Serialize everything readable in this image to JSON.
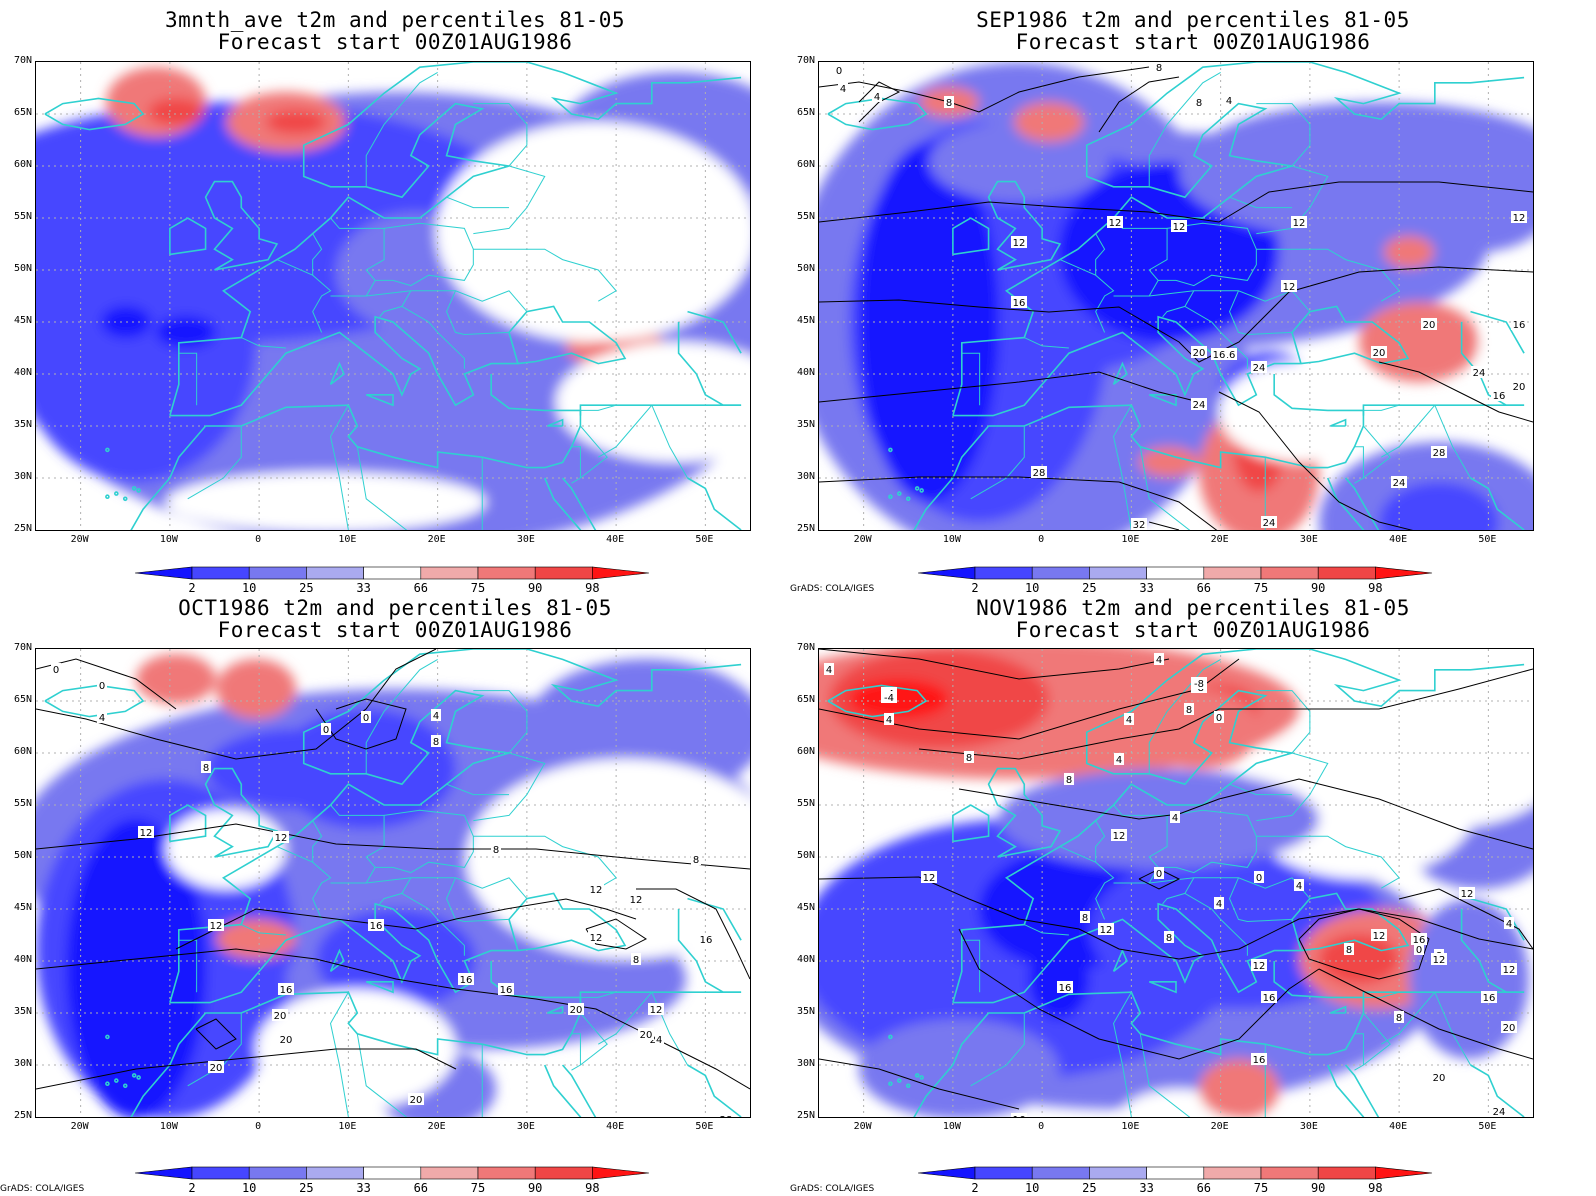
{
  "panels": [
    {
      "title1": "3mnth_ave t2m and percentiles 81-05",
      "title2": "Forecast start 00Z01AUG1986",
      "credit": ""
    },
    {
      "title1": "SEP1986 t2m and percentiles 81-05",
      "title2": "Forecast start 00Z01AUG1986",
      "credit": "GrADS: COLA/IGES"
    },
    {
      "title1": "OCT1986 t2m and percentiles 81-05",
      "title2": "Forecast start 00Z01AUG1986",
      "credit": "GrADS: COLA/IGES"
    },
    {
      "title1": "NOV1986 t2m and percentiles 81-05",
      "title2": "Forecast start 00Z01AUG1986",
      "credit": "GrADS: COLA/IGES"
    }
  ],
  "lat_labels": [
    "70N",
    "65N",
    "60N",
    "55N",
    "50N",
    "45N",
    "40N",
    "35N",
    "30N",
    "25N"
  ],
  "lon_labels": [
    "20W",
    "10W",
    "0",
    "10E",
    "20E",
    "30E",
    "40E",
    "50E"
  ],
  "colorbar": {
    "labels": [
      "2",
      "10",
      "25",
      "33",
      "66",
      "75",
      "90",
      "98"
    ],
    "colors": [
      "#1414ff",
      "#4646ff",
      "#7878f0",
      "#aaaaf0",
      "#ffffff",
      "#f0aaaa",
      "#f07878",
      "#f04646",
      "#ff1414"
    ]
  },
  "contour_labels": {
    "p1": [],
    "p2": [
      "0",
      "4",
      "4",
      "8",
      "8",
      "8",
      "4",
      "12",
      "12",
      "12",
      "12",
      "16",
      "16",
      "16",
      "20",
      "20",
      "20",
      "24",
      "24",
      "28",
      "28",
      "24",
      "24",
      "32",
      "16",
      "16",
      "12",
      "12",
      "20",
      "24"
    ],
    "p3": [
      "0",
      "0",
      "4",
      "8",
      "8",
      "0",
      "0",
      "4",
      "8",
      "8",
      "12",
      "12",
      "12",
      "16",
      "16",
      "20",
      "20",
      "16",
      "20",
      "20",
      "24",
      "28",
      "20",
      "8",
      "16",
      "12",
      "12",
      "16",
      "20",
      "24",
      "12",
      "12"
    ],
    "p4": [
      "4",
      "-4",
      "-8",
      "4",
      "8",
      "0",
      "4",
      "8",
      "4",
      "12",
      "4",
      "0",
      "0",
      "4",
      "8",
      "8",
      "12",
      "16",
      "12",
      "16",
      "12",
      "4",
      "8",
      "12",
      "0",
      "8",
      "12",
      "16",
      "20",
      "16",
      "20",
      "24",
      "-8",
      "-4",
      "4",
      "8",
      "4",
      "12",
      "16",
      "8",
      "12",
      "16"
    ]
  },
  "colors": {
    "coast": "#2fd0d0",
    "grid": "#b0b0b0"
  }
}
